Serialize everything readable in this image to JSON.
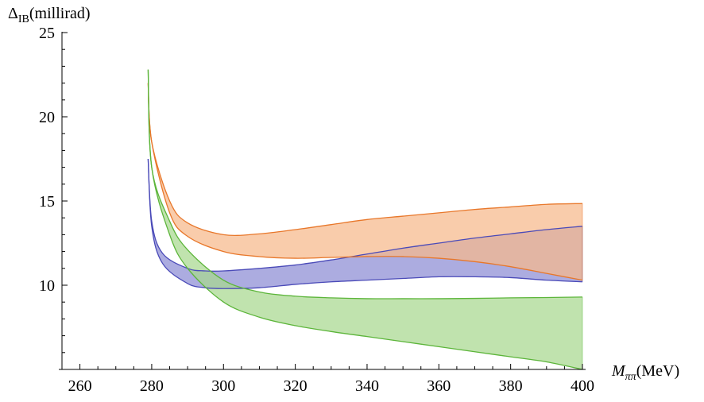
{
  "chart_data": {
    "type": "area",
    "title": "",
    "ylabel": {
      "main": "Δ",
      "sub": "IB",
      "unit": "(millirad)"
    },
    "xlabel": {
      "main": "M",
      "sub": "ππ",
      "unit": "(MeV)"
    },
    "xlim": [
      255,
      400
    ],
    "ylim": [
      5,
      25
    ],
    "x_axis_crosses_at_y": 5,
    "y_axis_crosses_at_x": 255,
    "x_ticks": [
      260,
      280,
      300,
      320,
      340,
      360,
      380,
      400
    ],
    "x_tick_labels": [
      "260",
      "280",
      "300",
      "320",
      "340",
      "360",
      "380",
      "400"
    ],
    "y_ticks": [
      10,
      15,
      20,
      25
    ],
    "y_tick_labels": [
      "10",
      "15",
      "20",
      "25"
    ],
    "x_minor_step": 5,
    "y_minor_step": 1,
    "grid": false,
    "legend": "none",
    "series": [
      {
        "color": "#4a4ab8",
        "fill": "#8c8cd4",
        "x": [
          279,
          280,
          283,
          290,
          295,
          300,
          310,
          320,
          330,
          340,
          350,
          360,
          370,
          380,
          390,
          400
        ],
        "upper": [
          17.5,
          13.8,
          11.9,
          11.0,
          10.85,
          10.85,
          11.0,
          11.2,
          11.5,
          11.85,
          12.2,
          12.5,
          12.8,
          13.05,
          13.3,
          13.5
        ],
        "lower": [
          17.5,
          13.5,
          11.3,
          10.1,
          9.85,
          9.8,
          9.85,
          10.05,
          10.2,
          10.3,
          10.4,
          10.5,
          10.5,
          10.45,
          10.3,
          10.2
        ]
      },
      {
        "color": "#e8772a",
        "fill": "#f7b98a",
        "x": [
          279,
          280,
          285,
          290,
          300,
          310,
          320,
          330,
          340,
          350,
          360,
          370,
          380,
          390,
          400
        ],
        "upper": [
          22.0,
          18.5,
          15.0,
          13.7,
          13.0,
          13.05,
          13.3,
          13.6,
          13.9,
          14.1,
          14.3,
          14.5,
          14.65,
          14.8,
          14.85
        ],
        "lower": [
          22.0,
          18.5,
          14.3,
          12.9,
          12.0,
          11.7,
          11.6,
          11.65,
          11.7,
          11.7,
          11.6,
          11.4,
          11.1,
          10.7,
          10.3
        ]
      },
      {
        "color": "#5cb53a",
        "fill": "#a8d88f",
        "x": [
          279,
          280,
          285,
          290,
          300,
          310,
          320,
          330,
          340,
          350,
          360,
          370,
          380,
          390,
          400
        ],
        "upper": [
          22.8,
          17.0,
          13.8,
          12.1,
          10.3,
          9.6,
          9.35,
          9.25,
          9.2,
          9.2,
          9.2,
          9.22,
          9.25,
          9.27,
          9.3
        ],
        "lower": [
          22.8,
          17.0,
          13.0,
          11.0,
          9.0,
          8.1,
          7.6,
          7.25,
          6.95,
          6.65,
          6.35,
          6.05,
          5.75,
          5.45,
          5.0
        ]
      }
    ]
  }
}
